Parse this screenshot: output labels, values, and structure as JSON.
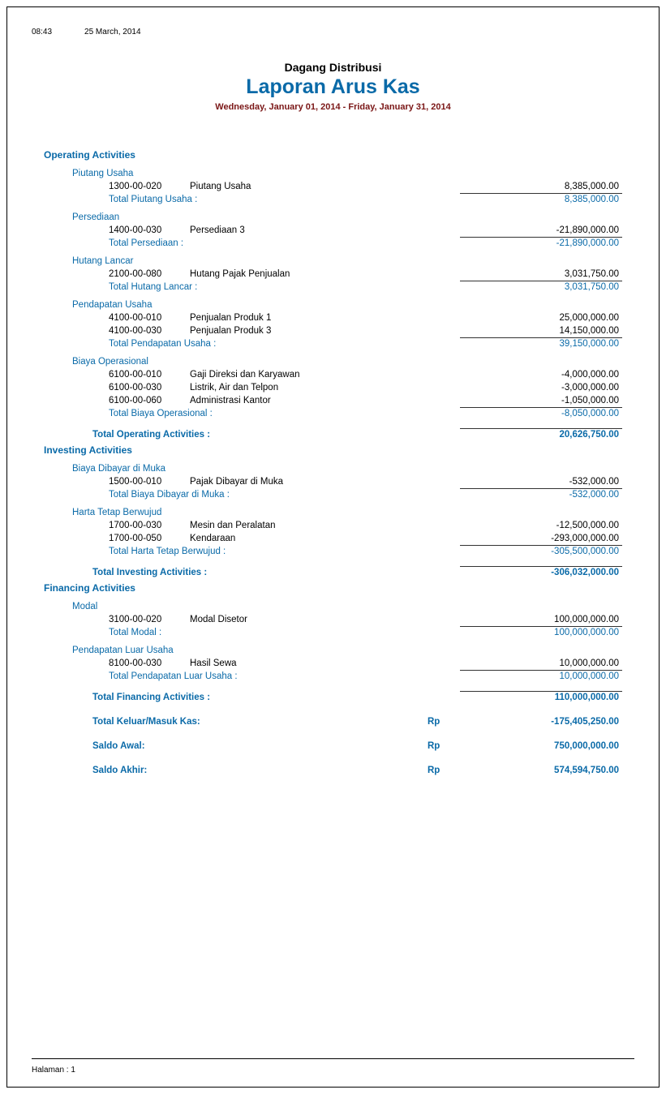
{
  "meta": {
    "time": "08:43",
    "date": "25 March, 2014"
  },
  "header": {
    "company": "Dagang Distribusi",
    "title": "Laporan Arus Kas",
    "range": "Wednesday, January 01, 2014 - Friday, January 31, 2014"
  },
  "colors": {
    "accent": "#0a6aa8",
    "date_range": "#7a1616",
    "text": "#000000",
    "border": "#333333"
  },
  "sections": [
    {
      "title": "Operating Activities",
      "total_label": "Total Operating Activities :",
      "total_value": "20,626,750.00",
      "groups": [
        {
          "name": "Piutang Usaha",
          "items": [
            {
              "code": "1300-00-020",
              "label": "Piutang Usaha",
              "value": "8,385,000.00"
            }
          ],
          "subtotal_label": "Total Piutang Usaha :",
          "subtotal_value": "8,385,000.00"
        },
        {
          "name": "Persediaan",
          "items": [
            {
              "code": "1400-00-030",
              "label": "Persediaan 3",
              "value": "-21,890,000.00"
            }
          ],
          "subtotal_label": "Total Persediaan :",
          "subtotal_value": "-21,890,000.00"
        },
        {
          "name": "Hutang Lancar",
          "items": [
            {
              "code": "2100-00-080",
              "label": "Hutang Pajak Penjualan",
              "value": "3,031,750.00"
            }
          ],
          "subtotal_label": "Total Hutang Lancar :",
          "subtotal_value": "3,031,750.00"
        },
        {
          "name": "Pendapatan Usaha",
          "items": [
            {
              "code": "4100-00-010",
              "label": "Penjualan Produk 1",
              "value": "25,000,000.00"
            },
            {
              "code": "4100-00-030",
              "label": "Penjualan Produk 3",
              "value": "14,150,000.00"
            }
          ],
          "subtotal_label": "Total Pendapatan Usaha :",
          "subtotal_value": "39,150,000.00"
        },
        {
          "name": "Biaya Operasional",
          "items": [
            {
              "code": "6100-00-010",
              "label": "Gaji Direksi dan Karyawan",
              "value": "-4,000,000.00"
            },
            {
              "code": "6100-00-030",
              "label": "Listrik, Air dan Telpon",
              "value": "-3,000,000.00"
            },
            {
              "code": "6100-00-060",
              "label": "Administrasi Kantor",
              "value": "-1,050,000.00"
            }
          ],
          "subtotal_label": "Total Biaya Operasional :",
          "subtotal_value": "-8,050,000.00"
        }
      ]
    },
    {
      "title": "Investing Activities",
      "total_label": "Total Investing Activities :",
      "total_value": "-306,032,000.00",
      "groups": [
        {
          "name": "Biaya Dibayar di Muka",
          "items": [
            {
              "code": "1500-00-010",
              "label": "Pajak Dibayar di Muka",
              "value": "-532,000.00"
            }
          ],
          "subtotal_label": "Total Biaya Dibayar di Muka :",
          "subtotal_value": "-532,000.00"
        },
        {
          "name": "Harta Tetap Berwujud",
          "items": [
            {
              "code": "1700-00-030",
              "label": "Mesin dan Peralatan",
              "value": "-12,500,000.00"
            },
            {
              "code": "1700-00-050",
              "label": "Kendaraan",
              "value": "-293,000,000.00"
            }
          ],
          "subtotal_label": "Total Harta Tetap Berwujud :",
          "subtotal_value": "-305,500,000.00"
        }
      ]
    },
    {
      "title": "Financing Activities",
      "total_label": "Total Financing Activities :",
      "total_value": "110,000,000.00",
      "groups": [
        {
          "name": "Modal",
          "items": [
            {
              "code": "3100-00-020",
              "label": "Modal Disetor",
              "value": "100,000,000.00"
            }
          ],
          "subtotal_label": "Total Modal :",
          "subtotal_value": "100,000,000.00"
        },
        {
          "name": "Pendapatan Luar Usaha",
          "items": [
            {
              "code": "8100-00-030",
              "label": "Hasil Sewa",
              "value": "10,000,000.00"
            }
          ],
          "subtotal_label": "Total Pendapatan Luar Usaha :",
          "subtotal_value": "10,000,000.00"
        }
      ]
    }
  ],
  "grand": [
    {
      "label": "Total Keluar/Masuk Kas:",
      "currency": "Rp",
      "value": "-175,405,250.00"
    },
    {
      "label": "Saldo Awal:",
      "currency": "Rp",
      "value": "750,000,000.00"
    },
    {
      "label": "Saldo Akhir:",
      "currency": "Rp",
      "value": "574,594,750.00"
    }
  ],
  "footer": {
    "page_label": "Halaman :",
    "page_num": "1"
  }
}
